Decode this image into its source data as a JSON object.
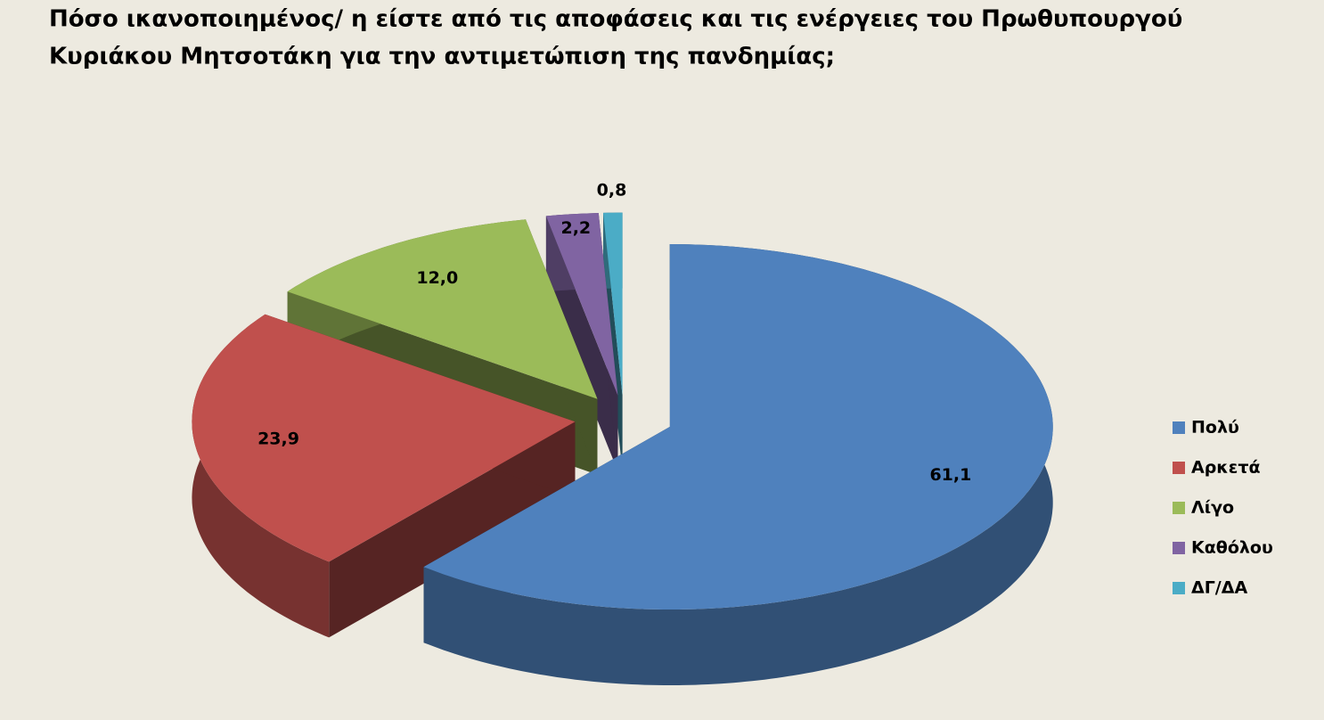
{
  "chart_data": {
    "type": "pie3d",
    "title": [
      "Πόσο ικανοποιημένος/ η είστε από τις αποφάσεις και τις ενέργειες του Πρωθυπουργού",
      "Κυριάκου Μητσοτάκη  για την αντιμετώπιση της πανδημίας;"
    ],
    "categories": [
      "Πολύ",
      "Αρκετά",
      "Λίγο",
      "Καθόλου",
      "ΔΓ/ΔΑ"
    ],
    "values": [
      61.1,
      23.9,
      12.0,
      2.2,
      0.8
    ],
    "value_labels": [
      "61,1",
      "23,9",
      "12,0",
      "2,2",
      "0,8"
    ],
    "colors": [
      "#4f81bd",
      "#c0504d",
      "#9bbb59",
      "#8064a2",
      "#4bacc6"
    ],
    "legend": "right"
  }
}
